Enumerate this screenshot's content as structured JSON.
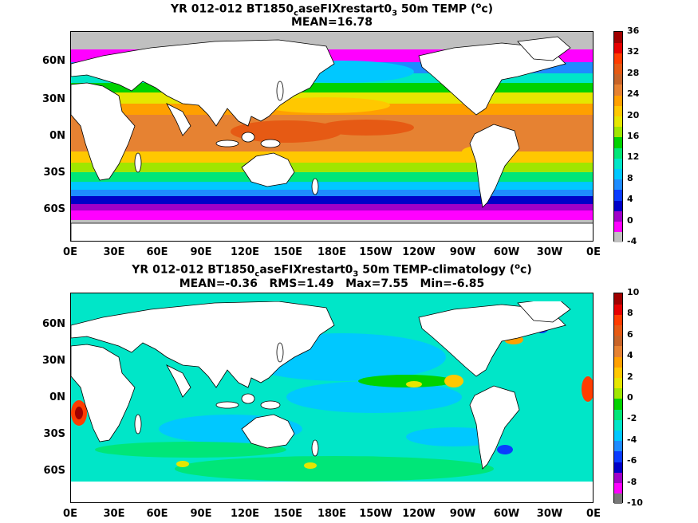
{
  "panel1": {
    "title_prefix": "YR 012-012 BT1850",
    "title_sub": "c",
    "title_mid": "aseFIXrestart0",
    "title_sub2": "3",
    "title_suffix": " 50m TEMP (",
    "title_sup": "o",
    "title_end": "c)",
    "stats": "MEAN=16.78",
    "colorbar_labels": [
      "36",
      "32",
      "28",
      "24",
      "20",
      "16",
      "12",
      "8",
      "4",
      "0",
      "-4"
    ],
    "colorbar_colors": [
      "#c0c0c0",
      "#ff00ff",
      "#a000c8",
      "#0000c8",
      "#0a3cff",
      "#1e8cff",
      "#00c8ff",
      "#00e6c8",
      "#00e678",
      "#00d200",
      "#a0e600",
      "#e6e600",
      "#ffc800",
      "#ffa000",
      "#e68232",
      "#c86428",
      "#e65a14",
      "#ff3c00",
      "#e60000",
      "#a00000"
    ]
  },
  "panel2": {
    "title_prefix": "YR 012-012 BT1850",
    "title_sub": "c",
    "title_mid": "aseFIXrestart0",
    "title_sub2": "3",
    "title_suffix": " 50m TEMP-climatology (",
    "title_sup": "o",
    "title_end": "c)",
    "stats": "MEAN=-0.36   RMS=1.49   Max=7.55   Min=-6.85",
    "colorbar_labels": [
      "10",
      "8",
      "6",
      "4",
      "2",
      "0",
      "-2",
      "-4",
      "-6",
      "-8",
      "-10"
    ],
    "colorbar_colors": [
      "#787878",
      "#ff00ff",
      "#a000c8",
      "#0000c8",
      "#0a3cff",
      "#1e8cff",
      "#00c8ff",
      "#00e6c8",
      "#00e678",
      "#00d200",
      "#a0e600",
      "#e6e600",
      "#ffc800",
      "#ffa000",
      "#e68232",
      "#c86428",
      "#e65a14",
      "#ff3c00",
      "#e60000",
      "#a00000"
    ]
  },
  "lat_labels": [
    "60N",
    "30N",
    "0N",
    "30S",
    "60S"
  ],
  "lon_labels": [
    "0E",
    "30E",
    "60E",
    "90E",
    "120E",
    "150E",
    "180E",
    "150W",
    "120W",
    "90W",
    "60W",
    "30W",
    "0E"
  ]
}
